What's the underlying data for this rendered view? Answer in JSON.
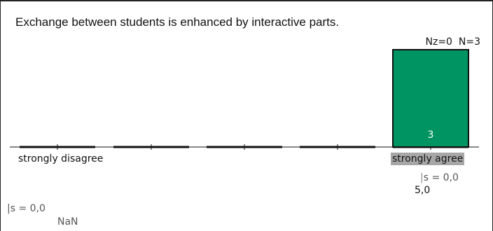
{
  "question": "Exchange between students is enhanced by interactive parts.",
  "stats": {
    "nz": "Nz=0",
    "n": "N=3",
    "mean_label": "5,0",
    "sd_label": "s = 0,0"
  },
  "abstention": {
    "sd_label": "s = 0,0",
    "mean_label": "NaN"
  },
  "chart_data": {
    "type": "bar",
    "categories": [
      "strongly disagree",
      "",
      "",
      "",
      "strongly agree"
    ],
    "values": [
      0,
      0,
      0,
      0,
      3
    ],
    "data_labels": [
      "",
      "",
      "",
      "",
      "3"
    ],
    "highlighted_category": "strongly agree",
    "ylim": [
      0,
      3
    ],
    "bar_color": "#009462",
    "axis_color": "#111111"
  }
}
